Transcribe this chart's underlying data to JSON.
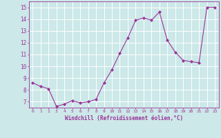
{
  "x": [
    0,
    1,
    2,
    3,
    4,
    5,
    6,
    7,
    8,
    9,
    10,
    11,
    12,
    13,
    14,
    15,
    16,
    17,
    18,
    19,
    20,
    21,
    22,
    23
  ],
  "y": [
    8.6,
    8.3,
    8.1,
    6.6,
    6.8,
    7.1,
    6.9,
    7.0,
    7.2,
    8.6,
    9.7,
    11.1,
    12.4,
    13.9,
    14.1,
    13.9,
    14.6,
    12.2,
    11.2,
    10.5,
    10.4,
    10.3,
    15.0,
    15.0
  ],
  "line_color": "#993399",
  "marker": "D",
  "marker_size": 2.0,
  "bg_color": "#cce8e8",
  "grid_color": "#b0d8d8",
  "xlabel": "Windchill (Refroidissement éolien,°C)",
  "xlabel_color": "#993399",
  "tick_color": "#993399",
  "ylim": [
    6.5,
    15.5
  ],
  "xlim": [
    -0.5,
    23.5
  ],
  "yticks": [
    7,
    8,
    9,
    10,
    11,
    12,
    13,
    14,
    15
  ],
  "xticks": [
    0,
    1,
    2,
    3,
    4,
    5,
    6,
    7,
    8,
    9,
    10,
    11,
    12,
    13,
    14,
    15,
    16,
    17,
    18,
    19,
    20,
    21,
    22,
    23
  ]
}
